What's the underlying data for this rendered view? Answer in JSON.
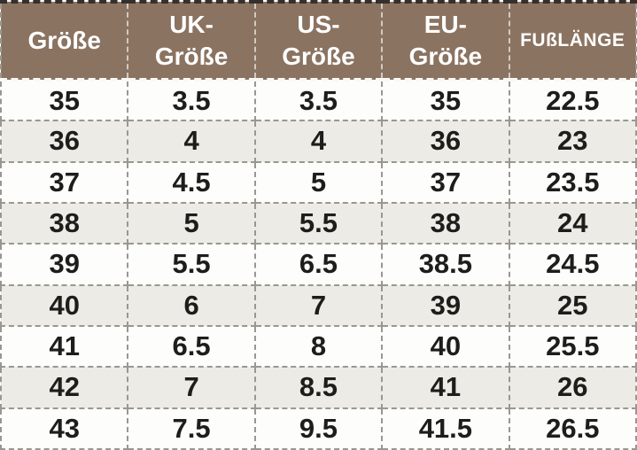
{
  "chart_data": {
    "type": "table",
    "columns": [
      "Größe",
      "UK-Größe",
      "US-Größe",
      "EU-Größe",
      "FUßLÄNGE"
    ],
    "column_keys": [
      "groesse",
      "uk-groesse",
      "us-groesse",
      "eu-groesse",
      "fusslaenge"
    ],
    "header_lines": [
      [
        "Größe"
      ],
      [
        "UK-",
        "Größe"
      ],
      [
        "US-",
        "Größe"
      ],
      [
        "EU-",
        "Größe"
      ],
      [
        "FUßLÄNGE"
      ]
    ],
    "rows": [
      [
        "35",
        "3.5",
        "3.5",
        "35",
        "22.5"
      ],
      [
        "36",
        "4",
        "4",
        "36",
        "23"
      ],
      [
        "37",
        "4.5",
        "5",
        "37",
        "23.5"
      ],
      [
        "38",
        "5",
        "5.5",
        "38",
        "24"
      ],
      [
        "39",
        "5.5",
        "6.5",
        "38.5",
        "24.5"
      ],
      [
        "40",
        "6",
        "7",
        "39",
        "25"
      ],
      [
        "41",
        "6.5",
        "8",
        "40",
        "25.5"
      ],
      [
        "42",
        "7",
        "8.5",
        "41",
        "26"
      ],
      [
        "43",
        "7.5",
        "9.5",
        "41.5",
        "26.5"
      ]
    ]
  },
  "colors": {
    "header_bg": "#8b7361",
    "header_text": "#ffffff",
    "row_bg": "#fdfdfc",
    "row_alt_bg": "#edebe6",
    "cell_text": "#1d1d1b",
    "grid_border": "#9a9791"
  }
}
